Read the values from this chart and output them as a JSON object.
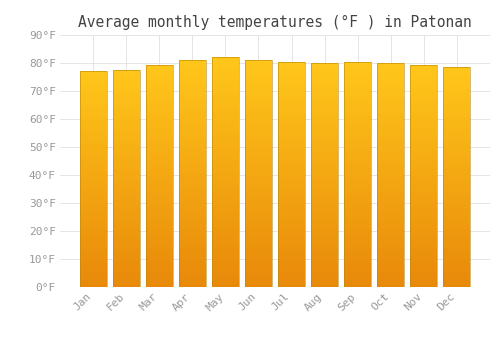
{
  "title": "Average monthly temperatures (°F ) in Patonan",
  "months": [
    "Jan",
    "Feb",
    "Mar",
    "Apr",
    "May",
    "Jun",
    "Jul",
    "Aug",
    "Sep",
    "Oct",
    "Nov",
    "Dec"
  ],
  "values": [
    77.2,
    77.4,
    79.3,
    81.1,
    82.2,
    81.0,
    80.2,
    80.1,
    80.2,
    80.1,
    79.3,
    78.4
  ],
  "bar_color_bottom": "#E8890A",
  "bar_color_top": "#FFC61A",
  "bar_edge_color": "#B8860B",
  "background_color": "#ffffff",
  "grid_color": "#e0e0e0",
  "text_color": "#999999",
  "title_color": "#444444",
  "ylim": [
    0,
    90
  ],
  "ytick_step": 10,
  "title_fontsize": 10.5,
  "tick_fontsize": 8,
  "bar_width": 0.82
}
